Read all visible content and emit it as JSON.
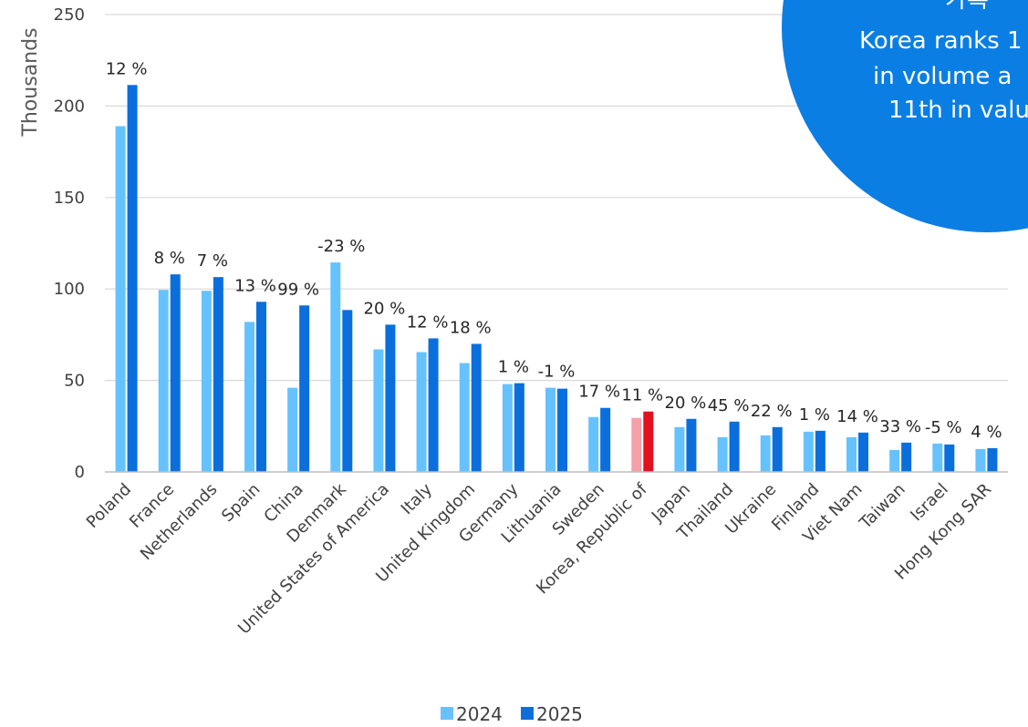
{
  "chart_data": {
    "type": "bar",
    "ylabel": "Thousands",
    "ylim": [
      0,
      250
    ],
    "yticks": [
      0,
      50,
      100,
      150,
      200,
      250
    ],
    "grid": true,
    "legend_position": "bottom",
    "categories": [
      "Poland",
      "France",
      "Netherlands",
      "Spain",
      "China",
      "Denmark",
      "United States of America",
      "Italy",
      "United Kingdom",
      "Germany",
      "Lithuania",
      "Sweden",
      "Korea, Republic of",
      "Japan",
      "Thailand",
      "Ukraine",
      "Finland",
      "Viet Nam",
      "Taiwan",
      "Israel",
      "Hong Kong SAR"
    ],
    "series": [
      {
        "name": "2024",
        "color": "#66c2ff",
        "values": [
          189,
          99.5,
          99,
          82,
          46,
          114.5,
          67,
          65.5,
          59.5,
          48,
          46,
          30,
          29.5,
          24.5,
          19,
          20,
          22,
          19,
          12,
          15.5,
          12.5
        ]
      },
      {
        "name": "2025",
        "color": "#0a6fdc",
        "values": [
          211.5,
          108,
          106.5,
          93,
          91,
          88.5,
          80.5,
          73,
          70,
          48.5,
          45.5,
          35,
          33,
          29,
          27.5,
          24.5,
          22.5,
          21.5,
          16,
          15,
          13
        ]
      }
    ],
    "highlight": {
      "category": "Korea, Republic of",
      "colors": [
        "#f4a0a8",
        "#e3101e"
      ]
    },
    "annotations": [
      "12 %",
      "8 %",
      "7 %",
      "13 %",
      "99 %",
      "-23 %",
      "20 %",
      "12 %",
      "18 %",
      "1 %",
      "-1 %",
      "17 %",
      "11 %",
      "20 %",
      "45 %",
      "22 %",
      "1 %",
      "14 %",
      "33 %",
      "-5 %",
      "4 %"
    ],
    "callout": {
      "lines": [
        "가록",
        "Korea ranks 1",
        "in volume a",
        "11th in valu"
      ],
      "color": "#0a7ee3"
    }
  }
}
